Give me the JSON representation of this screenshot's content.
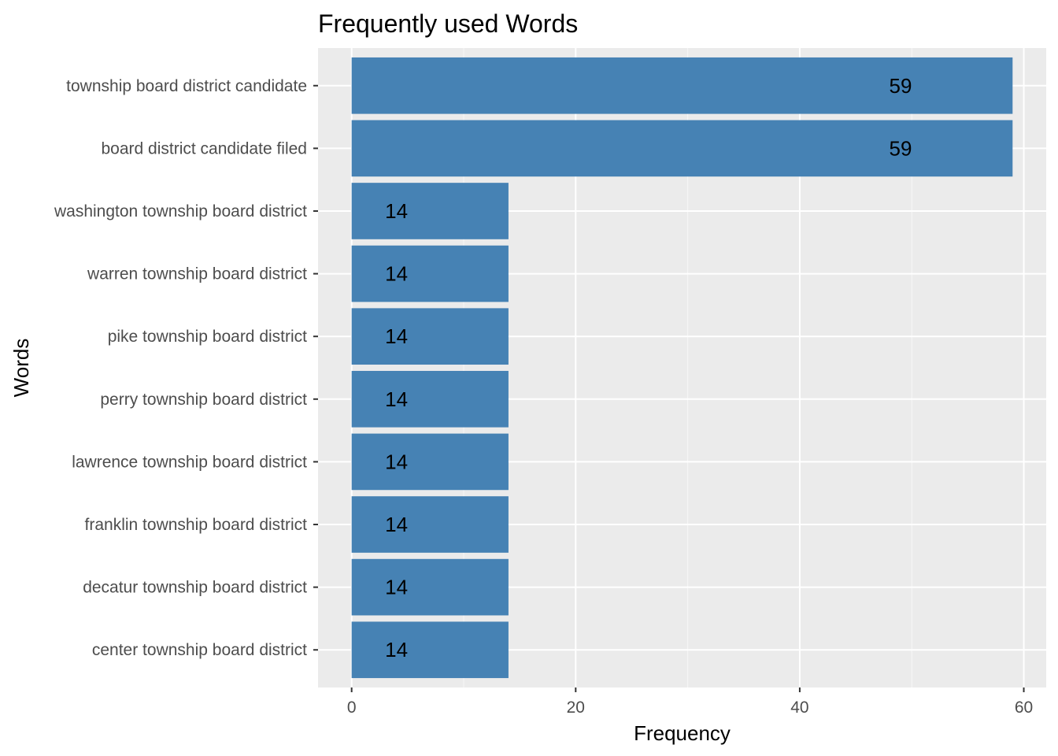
{
  "chart_data": {
    "type": "bar",
    "orientation": "horizontal",
    "title": "Frequently used Words",
    "xlabel": "Frequency",
    "ylabel": "Words",
    "categories": [
      "township board district candidate",
      "board district candidate filed",
      "washington township board district",
      "warren township board district",
      "pike township board district",
      "perry township board district",
      "lawrence township board district",
      "franklin township board district",
      "decatur township board district",
      "center township board district"
    ],
    "values": [
      59,
      59,
      14,
      14,
      14,
      14,
      14,
      14,
      14,
      14
    ],
    "data_labels": [
      "59",
      "59",
      "14",
      "14",
      "14",
      "14",
      "14",
      "14",
      "14",
      "14"
    ],
    "xlim": [
      -3,
      62
    ],
    "x_ticks": [
      0,
      20,
      40,
      60
    ],
    "x_tick_labels": [
      "0",
      "20",
      "40",
      "60"
    ],
    "grid": true,
    "legend": "none",
    "colors": {
      "bar": "#4682B4",
      "panel": "#EBEBEB",
      "grid_major": "#FFFFFF",
      "grid_minor": "#F7F7F7",
      "tick": "#333333"
    }
  }
}
